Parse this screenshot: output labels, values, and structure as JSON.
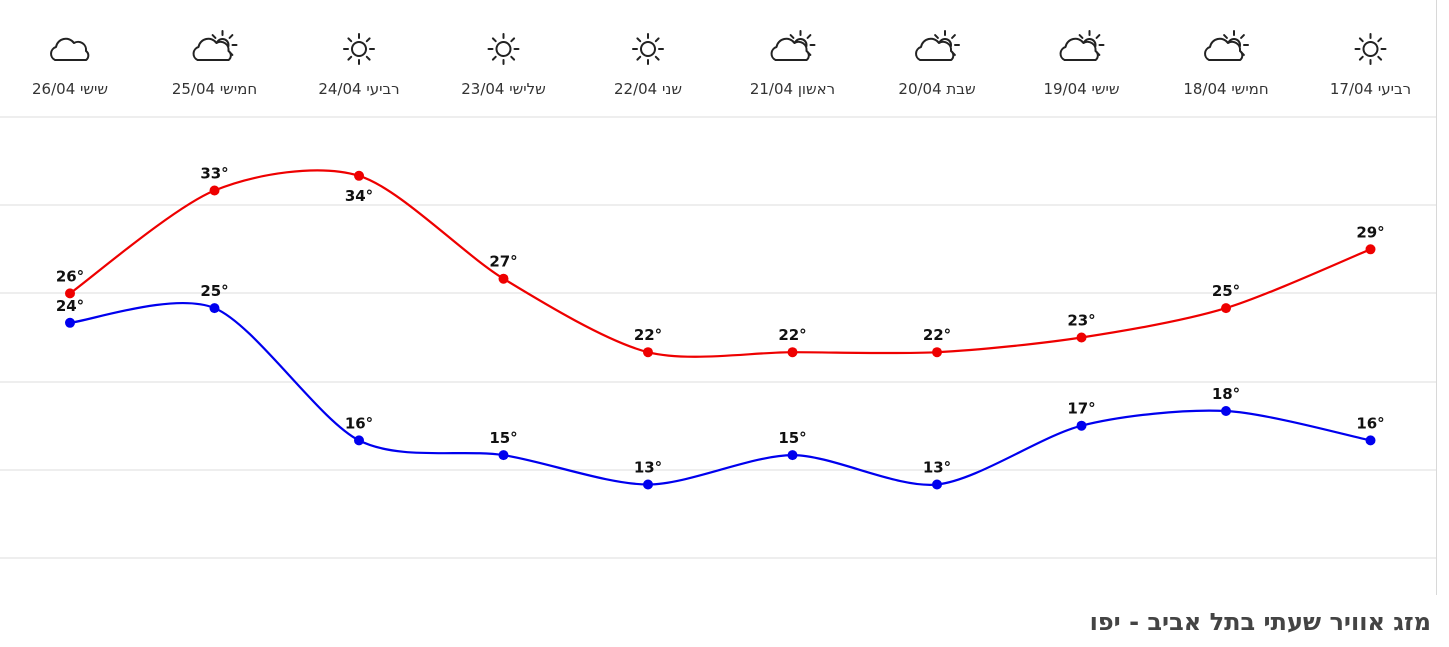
{
  "page_title": "מזג אוויר שעתי בתל אביב - יפו",
  "chart_data": {
    "type": "line",
    "days": [
      {
        "label": "שישי 26/04",
        "icon": "cloud-icon"
      },
      {
        "label": "חמישי 25/04",
        "icon": "partly-cloudy-icon"
      },
      {
        "label": "רביעי 24/04",
        "icon": "sun-icon"
      },
      {
        "label": "שלישי 23/04",
        "icon": "sun-icon"
      },
      {
        "label": "שני 22/04",
        "icon": "sun-icon"
      },
      {
        "label": "ראשון 21/04",
        "icon": "partly-cloudy-icon"
      },
      {
        "label": "שבת 20/04",
        "icon": "partly-cloudy-icon"
      },
      {
        "label": "שישי 19/04",
        "icon": "partly-cloudy-icon"
      },
      {
        "label": "חמישי 18/04",
        "icon": "partly-cloudy-icon"
      },
      {
        "label": "רביעי 17/04",
        "icon": "sun-icon"
      }
    ],
    "series": [
      {
        "values": [
          26,
          33,
          34,
          27,
          22,
          22,
          22,
          23,
          25,
          29
        ],
        "color": "#ee0000"
      },
      {
        "values": [
          24,
          25,
          16,
          15,
          13,
          15,
          13,
          17,
          18,
          16
        ],
        "color": "#0000ee"
      }
    ],
    "unit": "°",
    "ylim": [
      8,
      38
    ],
    "grid": true
  }
}
